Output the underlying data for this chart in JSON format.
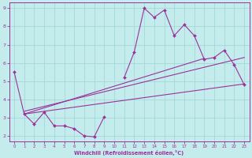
{
  "xlabel": "Windchill (Refroidissement éolien,°C)",
  "xlim": [
    -0.5,
    23.5
  ],
  "ylim": [
    1.7,
    9.3
  ],
  "yticks": [
    2,
    3,
    4,
    5,
    6,
    7,
    8,
    9
  ],
  "xticks": [
    0,
    1,
    2,
    3,
    4,
    5,
    6,
    7,
    8,
    9,
    10,
    11,
    12,
    13,
    14,
    15,
    16,
    17,
    18,
    19,
    20,
    21,
    22,
    23
  ],
  "background_color": "#c5eced",
  "grid_color": "#9fd4d6",
  "line_color": "#993399",
  "hours": [
    0,
    1,
    2,
    3,
    4,
    5,
    6,
    7,
    8,
    9,
    10,
    11,
    12,
    13,
    14,
    15,
    16,
    17,
    18,
    19,
    20,
    21,
    22,
    23
  ],
  "main_line": [
    5.5,
    3.2,
    2.65,
    3.3,
    2.55,
    2.55,
    2.4,
    2.0,
    1.95,
    3.05,
    null,
    5.2,
    6.6,
    9.0,
    8.5,
    8.9,
    7.5,
    8.1,
    7.5,
    6.2,
    6.3,
    6.7,
    5.9,
    4.8
  ],
  "reg_lines": [
    [
      [
        1,
        3.2
      ],
      [
        23,
        4.85
      ]
    ],
    [
      [
        1,
        3.2
      ],
      [
        19,
        6.25
      ]
    ],
    [
      [
        1,
        3.35
      ],
      [
        23,
        6.3
      ]
    ]
  ],
  "marker": "D",
  "markersize": 2.0,
  "linewidth": 0.8
}
